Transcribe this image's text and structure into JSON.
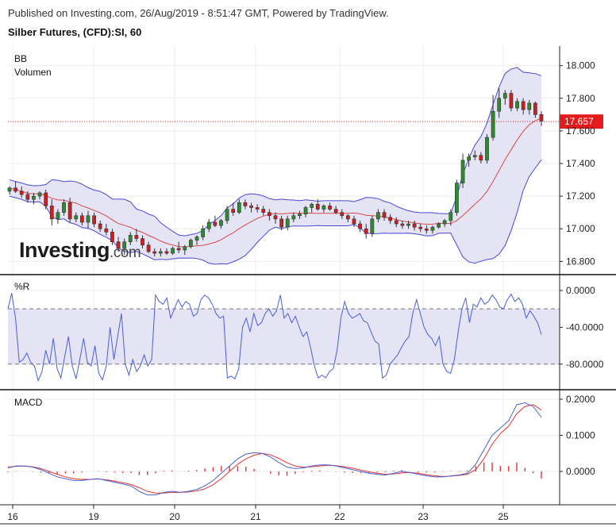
{
  "header": {
    "published": "Published on Investing.com, 26/Aug/2019 - 8:51:47 GMT, Powered by TradingView.",
    "symbol": "Silber Futures, (CFD):SI, 60"
  },
  "watermark": {
    "brand": "Investing",
    "suffix": ".com"
  },
  "colors": {
    "up": "#2e8b2e",
    "down": "#cc1f1f",
    "band": "#4848d8",
    "band_fill": "#e4e4f4",
    "ma": "#d94848",
    "signal": "#e53535",
    "macd": "#4a5fd6",
    "price_tag": "#e41b1b"
  },
  "chart_data": [
    {
      "type": "candlestick",
      "panel": "price",
      "labels": [
        "BB",
        "Volumen"
      ],
      "ylim": [
        16.68,
        18.12
      ],
      "y_ticks": [
        "18.000",
        "17.800",
        "17.600",
        "17.400",
        "17.200",
        "17.000",
        "16.800"
      ],
      "last_price": "17.657",
      "x_axis_labels": [
        "16",
        "19",
        "20",
        "21",
        "22",
        "23",
        "25"
      ],
      "candles_ohlc": [
        [
          17.23,
          17.26,
          17.21,
          17.25
        ],
        [
          17.25,
          17.29,
          17.22,
          17.23
        ],
        [
          17.23,
          17.26,
          17.19,
          17.21
        ],
        [
          17.21,
          17.23,
          17.16,
          17.18
        ],
        [
          17.18,
          17.22,
          17.15,
          17.2
        ],
        [
          17.2,
          17.23,
          17.18,
          17.22
        ],
        [
          17.22,
          17.24,
          17.12,
          17.14
        ],
        [
          17.14,
          17.18,
          17.02,
          17.06
        ],
        [
          17.06,
          17.12,
          17.03,
          17.1
        ],
        [
          17.1,
          17.18,
          17.08,
          17.16
        ],
        [
          17.16,
          17.19,
          17.04,
          17.06
        ],
        [
          17.06,
          17.1,
          17.04,
          17.08
        ],
        [
          17.08,
          17.1,
          17.02,
          17.04
        ],
        [
          17.04,
          17.11,
          17.0,
          17.08
        ],
        [
          17.08,
          17.1,
          17.01,
          17.03
        ],
        [
          17.03,
          17.05,
          16.98,
          17.0
        ],
        [
          17.0,
          17.03,
          16.96,
          16.98
        ],
        [
          16.98,
          17.0,
          16.9,
          16.92
        ],
        [
          16.92,
          16.95,
          16.86,
          16.88
        ],
        [
          16.88,
          16.94,
          16.84,
          16.92
        ],
        [
          16.92,
          16.98,
          16.9,
          16.96
        ],
        [
          16.96,
          17.0,
          16.92,
          16.94
        ],
        [
          16.94,
          16.96,
          16.88,
          16.9
        ],
        [
          16.9,
          16.92,
          16.85,
          16.86
        ],
        [
          16.86,
          16.88,
          16.83,
          16.85
        ],
        [
          16.85,
          16.88,
          16.83,
          16.86
        ],
        [
          16.86,
          16.88,
          16.84,
          16.85
        ],
        [
          16.85,
          16.89,
          16.84,
          16.88
        ],
        [
          16.88,
          16.92,
          16.85,
          16.87
        ],
        [
          16.87,
          16.9,
          16.84,
          16.89
        ],
        [
          16.89,
          16.94,
          16.88,
          16.93
        ],
        [
          16.93,
          16.96,
          16.9,
          16.95
        ],
        [
          16.95,
          17.02,
          16.93,
          17.0
        ],
        [
          17.0,
          17.06,
          16.98,
          17.04
        ],
        [
          17.04,
          17.08,
          17.01,
          17.02
        ],
        [
          17.02,
          17.06,
          17.0,
          17.05
        ],
        [
          17.05,
          17.14,
          17.03,
          17.12
        ],
        [
          17.12,
          17.16,
          17.08,
          17.1
        ],
        [
          17.1,
          17.18,
          17.09,
          17.16
        ],
        [
          17.16,
          17.18,
          17.12,
          17.14
        ],
        [
          17.14,
          17.16,
          17.1,
          17.13
        ],
        [
          17.13,
          17.15,
          17.1,
          17.12
        ],
        [
          17.12,
          17.14,
          17.08,
          17.1
        ],
        [
          17.1,
          17.12,
          17.05,
          17.08
        ],
        [
          17.08,
          17.1,
          17.03,
          17.06
        ],
        [
          17.06,
          17.08,
          16.99,
          17.01
        ],
        [
          17.01,
          17.08,
          16.99,
          17.06
        ],
        [
          17.06,
          17.1,
          17.04,
          17.08
        ],
        [
          17.08,
          17.11,
          17.06,
          17.09
        ],
        [
          17.09,
          17.14,
          17.07,
          17.13
        ],
        [
          17.13,
          17.16,
          17.1,
          17.15
        ],
        [
          17.15,
          17.18,
          17.11,
          17.12
        ],
        [
          17.12,
          17.15,
          17.1,
          17.14
        ],
        [
          17.14,
          17.16,
          17.11,
          17.12
        ],
        [
          17.12,
          17.14,
          17.09,
          17.1
        ],
        [
          17.1,
          17.12,
          17.06,
          17.08
        ],
        [
          17.08,
          17.09,
          17.04,
          17.06
        ],
        [
          17.06,
          17.08,
          17.01,
          17.03
        ],
        [
          17.03,
          17.05,
          16.98,
          17.0
        ],
        [
          17.0,
          17.03,
          16.94,
          16.97
        ],
        [
          16.97,
          17.08,
          16.95,
          17.06
        ],
        [
          17.06,
          17.12,
          17.04,
          17.1
        ],
        [
          17.1,
          17.12,
          17.05,
          17.07
        ],
        [
          17.07,
          17.09,
          17.03,
          17.05
        ],
        [
          17.05,
          17.07,
          17.01,
          17.03
        ],
        [
          17.03,
          17.05,
          17.0,
          17.02
        ],
        [
          17.02,
          17.05,
          17.0,
          17.03
        ],
        [
          17.03,
          17.05,
          16.99,
          17.01
        ],
        [
          17.01,
          17.03,
          16.98,
          17.0
        ],
        [
          17.0,
          17.02,
          16.97,
          16.99
        ],
        [
          16.99,
          17.02,
          16.97,
          17.01
        ],
        [
          17.01,
          17.04,
          17.0,
          17.03
        ],
        [
          17.03,
          17.06,
          17.01,
          17.05
        ],
        [
          17.05,
          17.12,
          17.02,
          17.1
        ],
        [
          17.1,
          17.3,
          17.08,
          17.28
        ],
        [
          17.28,
          17.46,
          17.25,
          17.42
        ],
        [
          17.42,
          17.46,
          17.38,
          17.44
        ],
        [
          17.44,
          17.48,
          17.42,
          17.45
        ],
        [
          17.45,
          17.47,
          17.4,
          17.42
        ],
        [
          17.42,
          17.58,
          17.4,
          17.56
        ],
        [
          17.56,
          17.82,
          17.54,
          17.72
        ],
        [
          17.72,
          17.86,
          17.68,
          17.8
        ],
        [
          17.8,
          17.85,
          17.76,
          17.83
        ],
        [
          17.83,
          17.85,
          17.72,
          17.74
        ],
        [
          17.74,
          17.8,
          17.72,
          17.78
        ],
        [
          17.78,
          17.8,
          17.7,
          17.73
        ],
        [
          17.73,
          17.79,
          17.7,
          17.77
        ],
        [
          17.77,
          17.78,
          17.68,
          17.7
        ],
        [
          17.7,
          17.72,
          17.63,
          17.66
        ]
      ]
    },
    {
      "type": "line",
      "panel": "williams_r",
      "label": "%R",
      "ylim": [
        -100,
        6
      ],
      "y_ticks": [
        "0.0000",
        "-40.0000",
        "-80.0000"
      ],
      "guides": [
        -20,
        -80
      ],
      "values": [
        -20,
        -3,
        -30,
        -78,
        -75,
        -68,
        -78,
        -82,
        -98,
        -88,
        -65,
        -80,
        -52,
        -85,
        -95,
        -72,
        -50,
        -82,
        -96,
        -75,
        -52,
        -78,
        -82,
        -60,
        -90,
        -97,
        -82,
        -40,
        -75,
        -50,
        -25,
        -80,
        -92,
        -75,
        -88,
        -82,
        -70,
        -82,
        -75,
        -5,
        -12,
        -15,
        -8,
        -30,
        -20,
        -10,
        -18,
        -12,
        -15,
        -28,
        -25,
        -10,
        -5,
        -8,
        -15,
        -25,
        -30,
        -28,
        -95,
        -93,
        -96,
        -85,
        -40,
        -30,
        -45,
        -25,
        -38,
        -35,
        -25,
        -20,
        -28,
        -22,
        -5,
        -30,
        -25,
        -35,
        -28,
        -40,
        -50,
        -45,
        -62,
        -82,
        -95,
        -92,
        -95,
        -88,
        -85,
        -65,
        -30,
        -12,
        -25,
        -30,
        -28,
        -25,
        -33,
        -35,
        -45,
        -55,
        -58,
        -95,
        -92,
        -80,
        -75,
        -70,
        -62,
        -55,
        -50,
        -25,
        -10,
        -25,
        -40,
        -48,
        -52,
        -60,
        -50,
        -80,
        -88,
        -90,
        -75,
        -45,
        -20,
        -8,
        -35,
        -15,
        -18,
        -8,
        -15,
        -12,
        -5,
        -10,
        -18,
        -20,
        -10,
        -4,
        -12,
        -8,
        -15,
        -30,
        -22,
        -28,
        -35,
        -48
      ]
    },
    {
      "type": "line",
      "panel": "macd",
      "label": "MACD",
      "ylim": [
        -0.09,
        0.225
      ],
      "y_ticks": [
        "0.2000",
        "0.1000",
        "0.0000"
      ],
      "macd": [
        0.01,
        0.015,
        0.015,
        0.012,
        0.005,
        -0.005,
        -0.015,
        -0.02,
        -0.025,
        -0.025,
        -0.022,
        -0.02,
        -0.025,
        -0.03,
        -0.035,
        -0.04,
        -0.055,
        -0.065,
        -0.065,
        -0.058,
        -0.055,
        -0.058,
        -0.055,
        -0.05,
        -0.04,
        -0.025,
        -0.005,
        0.015,
        0.035,
        0.048,
        0.052,
        0.05,
        0.04,
        0.025,
        0.012,
        0.008,
        0.01,
        0.015,
        0.018,
        0.018,
        0.015,
        0.01,
        0.005,
        0.0,
        -0.005,
        -0.008,
        -0.01,
        -0.005,
        0.0,
        -0.003,
        -0.008,
        -0.012,
        -0.015,
        -0.015,
        -0.012,
        -0.01,
        -0.005,
        0.02,
        0.06,
        0.1,
        0.12,
        0.14,
        0.185,
        0.19,
        0.18,
        0.15
      ],
      "signal": [
        0.012,
        0.014,
        0.015,
        0.013,
        0.008,
        0.0,
        -0.008,
        -0.015,
        -0.02,
        -0.022,
        -0.022,
        -0.021,
        -0.023,
        -0.027,
        -0.031,
        -0.036,
        -0.045,
        -0.055,
        -0.06,
        -0.06,
        -0.058,
        -0.058,
        -0.057,
        -0.054,
        -0.048,
        -0.037,
        -0.02,
        0.0,
        0.02,
        0.035,
        0.045,
        0.05,
        0.046,
        0.036,
        0.024,
        0.015,
        0.012,
        0.013,
        0.015,
        0.017,
        0.016,
        0.013,
        0.009,
        0.004,
        -0.001,
        -0.005,
        -0.008,
        -0.007,
        -0.004,
        -0.003,
        -0.005,
        -0.009,
        -0.012,
        -0.014,
        -0.013,
        -0.011,
        -0.008,
        0.005,
        0.035,
        0.075,
        0.105,
        0.125,
        0.16,
        0.18,
        0.185,
        0.17
      ],
      "histogram": [
        -0.002,
        0.001,
        0.0,
        -0.001,
        -0.003,
        -0.005,
        -0.007,
        -0.005,
        -0.005,
        -0.003,
        0.0,
        0.001,
        -0.002,
        -0.003,
        -0.004,
        -0.004,
        -0.01,
        -0.01,
        -0.005,
        0.002,
        0.003,
        0.0,
        0.002,
        0.004,
        0.008,
        0.012,
        0.015,
        0.015,
        0.015,
        0.013,
        0.007,
        0.0,
        -0.006,
        -0.011,
        -0.012,
        -0.007,
        -0.002,
        0.002,
        0.003,
        0.001,
        -0.001,
        -0.003,
        -0.004,
        -0.004,
        -0.004,
        -0.003,
        -0.002,
        0.002,
        0.004,
        0.0,
        -0.003,
        -0.003,
        -0.003,
        -0.001,
        0.001,
        0.001,
        0.003,
        0.015,
        0.025,
        0.025,
        0.015,
        0.015,
        0.025,
        0.01,
        -0.005,
        -0.02
      ]
    }
  ]
}
